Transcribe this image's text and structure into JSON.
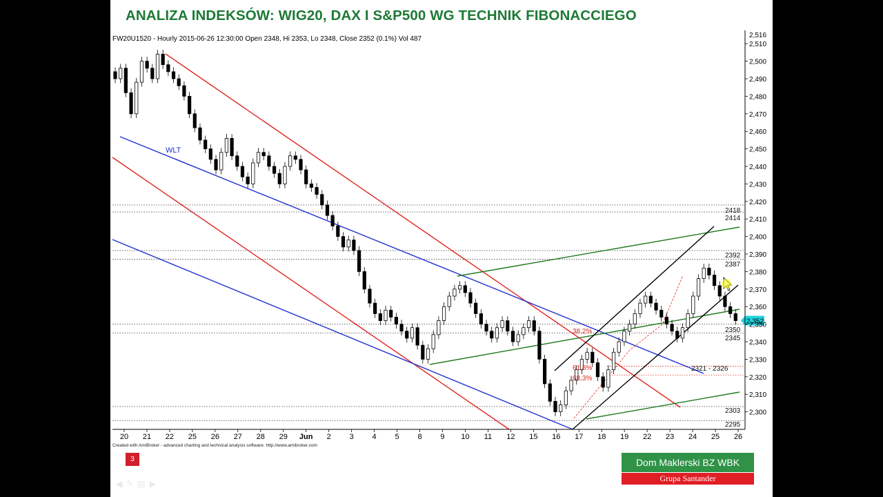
{
  "slide": {
    "title": "ANALIZA INDEKSÓW: WIG20, DAX I S&P500 WG TECHNIK FIBONACCIEGO",
    "number": "3",
    "nav_icons": [
      "prev-arrow-icon",
      "pen-icon",
      "menu-icon",
      "next-arrow-icon"
    ]
  },
  "branding": {
    "line1": "Dom Maklerski BZ WBK",
    "line2": "Grupa Santander",
    "line1_color": "#2f9247",
    "line2_color": "#e01e25"
  },
  "chart_data": {
    "type": "candlestick",
    "header": "FW20U1520 - Hourly 2015-06-26 12:30:00 Open 2348, Hi 2353, Lo 2348, Close 2352 (0.1%) Vol 487",
    "footer": "Created with AmiBroker - advanced charting and technical analysis software. http://www.amibroker.com",
    "ylim": [
      2290,
      2516
    ],
    "y_ticks": [
      2300,
      2310,
      2320,
      2330,
      2340,
      2350,
      2360,
      2370,
      2380,
      2390,
      2400,
      2410,
      2420,
      2430,
      2440,
      2450,
      2460,
      2470,
      2480,
      2490,
      2500,
      2510
    ],
    "y_top_label": "2,516",
    "x_labels": [
      "20",
      "21",
      "22",
      "25",
      "26",
      "27",
      "28",
      "29",
      "Jun",
      "2",
      "3",
      "4",
      "5",
      "8",
      "9",
      "10",
      "11",
      "12",
      "15",
      "16",
      "17",
      "18",
      "19",
      "22",
      "23",
      "24",
      "25",
      "26"
    ],
    "grid": false,
    "candle_closes": [
      2490,
      2496,
      2482,
      2470,
      2488,
      2500,
      2496,
      2490,
      2504,
      2498,
      2494,
      2490,
      2486,
      2480,
      2470,
      2462,
      2455,
      2450,
      2444,
      2438,
      2448,
      2456,
      2446,
      2440,
      2434,
      2430,
      2442,
      2448,
      2446,
      2440,
      2436,
      2430,
      2440,
      2446,
      2444,
      2438,
      2430,
      2428,
      2424,
      2418,
      2412,
      2406,
      2400,
      2394,
      2398,
      2392,
      2380,
      2370,
      2362,
      2356,
      2352,
      2358,
      2354,
      2350,
      2346,
      2342,
      2348,
      2338,
      2330,
      2336,
      2344,
      2352,
      2360,
      2366,
      2370,
      2372,
      2368,
      2362,
      2356,
      2350,
      2346,
      2342,
      2348,
      2352,
      2346,
      2340,
      2344,
      2348,
      2352,
      2346,
      2330,
      2316,
      2306,
      2300,
      2304,
      2312,
      2318,
      2324,
      2330,
      2334,
      2328,
      2320,
      2314,
      2324,
      2334,
      2340,
      2346,
      2350,
      2356,
      2362,
      2366,
      2362,
      2358,
      2354,
      2350,
      2346,
      2342,
      2348,
      2356,
      2366,
      2376,
      2382,
      2378,
      2372,
      2366,
      2360,
      2356,
      2352
    ],
    "horizontal_levels": [
      2418,
      2414,
      2392,
      2387,
      2350,
      2345,
      2303,
      2295
    ],
    "level_labels": [
      "2418",
      "2414",
      "2392",
      "2387",
      "2350",
      "2345",
      "2303",
      "2295",
      "2321 - 2326"
    ],
    "fib_labels": [
      "38,2%",
      "61,8%",
      "68,3%"
    ],
    "fib_levels": [
      2326,
      2321
    ],
    "current_price": "2,352",
    "annotations": [
      "WLT"
    ],
    "line_colors": {
      "red_channel": "#e0241c",
      "blue_trend": "#1f2fd0",
      "green_channel": "#1e7a1e",
      "black_channel": "#000000",
      "price_tag": "#22d3e0"
    }
  }
}
